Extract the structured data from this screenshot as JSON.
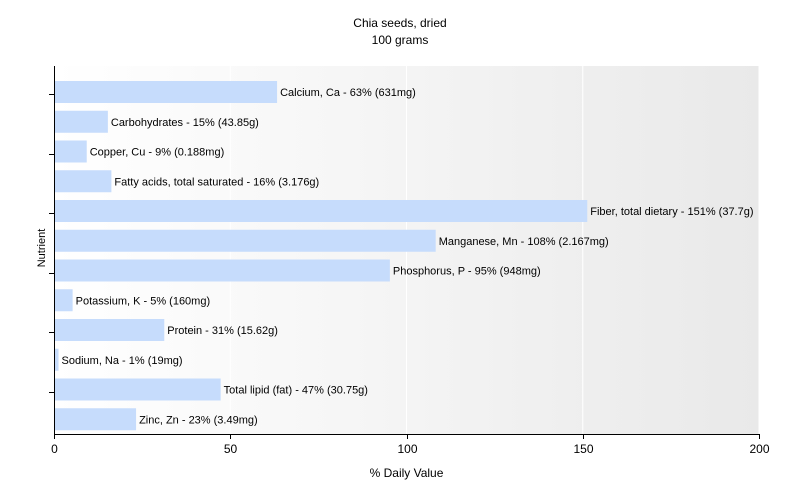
{
  "chart_data": {
    "type": "bar",
    "orientation": "horizontal",
    "title": "Chia seeds, dried",
    "subtitle": "100 grams",
    "xlabel": "% Daily Value",
    "ylabel": "Nutrient",
    "xlim": [
      0,
      200
    ],
    "xticks": [
      0,
      50,
      100,
      150,
      200
    ],
    "grid": false,
    "bar_color": "#c6dcfc",
    "categories": [
      "Calcium, Ca",
      "Carbohydrates",
      "Copper, Cu",
      "Fatty acids, total saturated",
      "Fiber, total dietary",
      "Manganese, Mn",
      "Phosphorus, P",
      "Potassium, K",
      "Protein",
      "Sodium, Na",
      "Total lipid (fat)",
      "Zinc, Zn"
    ],
    "values": [
      63,
      15,
      9,
      16,
      151,
      108,
      95,
      5,
      31,
      1,
      47,
      23
    ],
    "labels": [
      "Calcium, Ca - 63% (631mg)",
      "Carbohydrates - 15% (43.85g)",
      "Copper, Cu - 9% (0.188mg)",
      "Fatty acids, total saturated - 16% (3.176g)",
      "Fiber, total dietary - 151% (37.7g)",
      "Manganese, Mn - 108% (2.167mg)",
      "Phosphorus, P - 95% (948mg)",
      "Potassium, K - 5% (160mg)",
      "Protein - 31% (15.62g)",
      "Sodium, Na - 1% (19mg)",
      "Total lipid (fat) - 47% (30.75g)",
      "Zinc, Zn - 23% (3.49mg)"
    ]
  }
}
